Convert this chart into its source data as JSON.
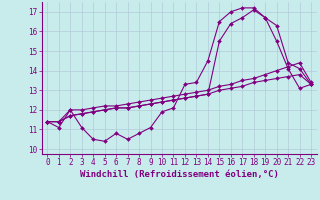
{
  "xlabel": "Windchill (Refroidissement éolien,°C)",
  "bg_color": "#c8ecec",
  "line_color": "#800080",
  "grid_color": "#b0c8d8",
  "xlim": [
    -0.5,
    23.5
  ],
  "ylim": [
    9.75,
    17.5
  ],
  "yticks": [
    10,
    11,
    12,
    13,
    14,
    15,
    16,
    17
  ],
  "xticks": [
    0,
    1,
    2,
    3,
    4,
    5,
    6,
    7,
    8,
    9,
    10,
    11,
    12,
    13,
    14,
    15,
    16,
    17,
    18,
    19,
    20,
    21,
    22,
    23
  ],
  "series": [
    [
      11.4,
      11.1,
      12.0,
      11.1,
      10.5,
      10.4,
      10.8,
      10.5,
      10.8,
      11.1,
      11.9,
      12.1,
      13.3,
      13.4,
      14.5,
      16.5,
      17.0,
      17.2,
      17.2,
      16.7,
      16.3,
      14.4,
      14.1,
      13.3
    ],
    [
      11.4,
      11.4,
      12.0,
      12.0,
      12.1,
      12.2,
      12.2,
      12.3,
      12.4,
      12.5,
      12.6,
      12.7,
      12.8,
      12.9,
      13.0,
      13.2,
      13.3,
      13.5,
      13.6,
      13.8,
      14.0,
      14.2,
      14.4,
      13.4
    ],
    [
      11.4,
      11.4,
      11.7,
      11.8,
      11.9,
      12.0,
      12.1,
      12.1,
      12.2,
      12.3,
      12.4,
      12.5,
      12.6,
      12.7,
      12.8,
      13.0,
      13.1,
      13.2,
      13.4,
      13.5,
      13.6,
      13.7,
      13.8,
      13.3
    ],
    [
      11.4,
      11.4,
      11.7,
      11.8,
      11.9,
      12.0,
      12.1,
      12.1,
      12.2,
      12.3,
      12.4,
      12.5,
      12.6,
      12.7,
      12.8,
      15.5,
      16.4,
      16.7,
      17.1,
      16.7,
      15.5,
      14.1,
      13.1,
      13.3
    ]
  ],
  "marker": "D",
  "markersize": 2.0,
  "linewidth": 0.8,
  "xlabel_fontsize": 6.5,
  "tick_fontsize": 5.5,
  "tick_color": "#800080"
}
